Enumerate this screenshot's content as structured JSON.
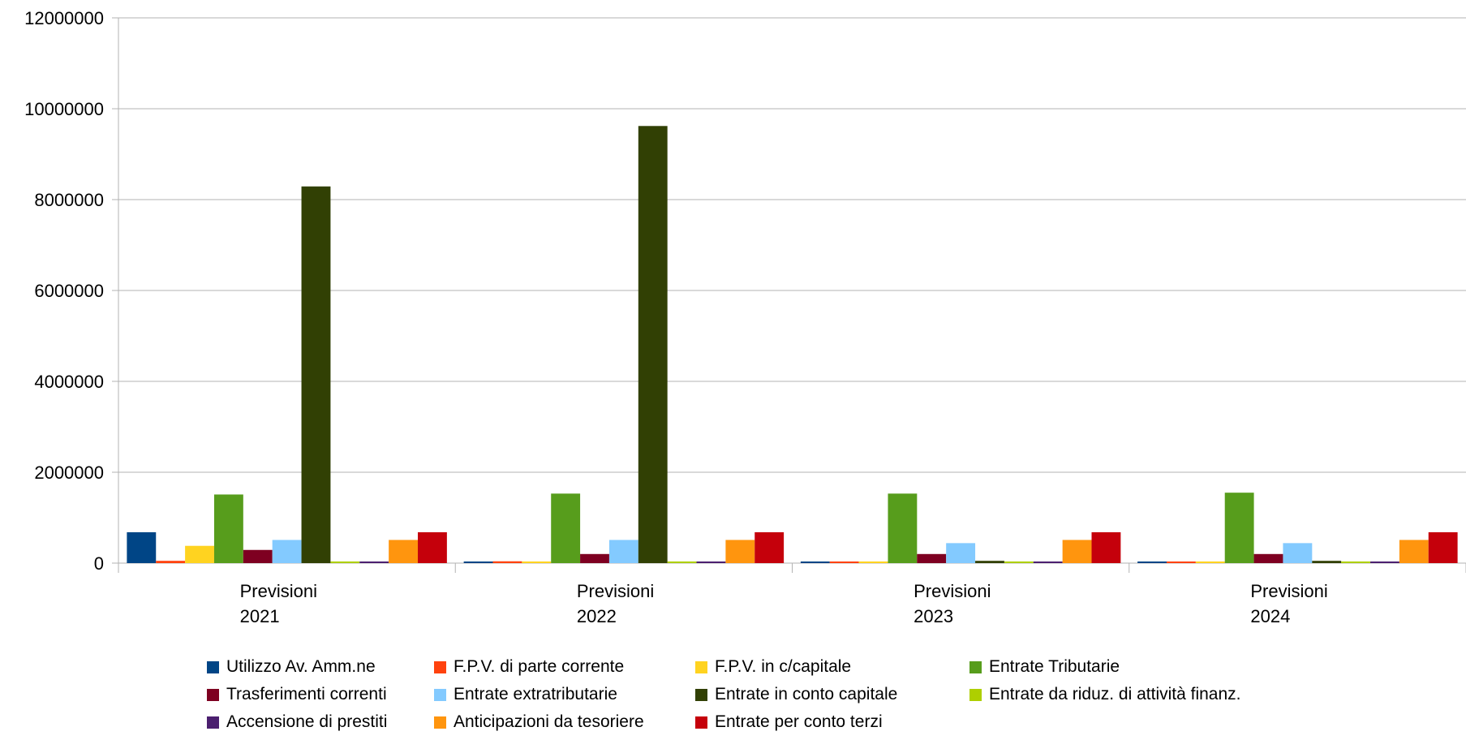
{
  "chart_data": {
    "type": "bar",
    "categories": [
      "Previsioni 2021",
      "Previsioni 2022",
      "Previsioni 2023",
      "Previsioni 2024"
    ],
    "category_lines": [
      [
        "Previsioni",
        "2021"
      ],
      [
        "Previsioni",
        "2022"
      ],
      [
        "Previsioni",
        "2023"
      ],
      [
        "Previsioni",
        "2024"
      ]
    ],
    "ylim": [
      0,
      12000000
    ],
    "yticks": [
      0,
      2000000,
      4000000,
      6000000,
      8000000,
      10000000,
      12000000
    ],
    "ytick_labels": [
      "0",
      "2000000",
      "4000000",
      "6000000",
      "8000000",
      "10000000",
      "12000000"
    ],
    "grid": true,
    "legend_position": "bottom",
    "series": [
      {
        "name": "Utilizzo Av. Amm.ne",
        "color": "#004586",
        "values": [
          680000,
          0,
          0,
          0
        ]
      },
      {
        "name": "F.P.V. di parte corrente",
        "color": "#ff420e",
        "values": [
          50000,
          40000,
          0,
          0
        ]
      },
      {
        "name": "F.P.V.  in c/capitale",
        "color": "#ffd320",
        "values": [
          380000,
          0,
          0,
          0
        ]
      },
      {
        "name": "Entrate Tributarie",
        "color": "#579d1c",
        "values": [
          1510000,
          1530000,
          1530000,
          1550000
        ]
      },
      {
        "name": "Trasferimenti correnti",
        "color": "#7e0021",
        "values": [
          290000,
          200000,
          200000,
          200000
        ]
      },
      {
        "name": "Entrate extratributarie",
        "color": "#83caff",
        "values": [
          510000,
          510000,
          440000,
          440000
        ]
      },
      {
        "name": "Entrate in conto capitale",
        "color": "#314004",
        "values": [
          8290000,
          9620000,
          50000,
          50000
        ]
      },
      {
        "name": "Entrate da riduz. di attività finanz.",
        "color": "#aecf00",
        "values": [
          0,
          0,
          0,
          0
        ]
      },
      {
        "name": "Accensione di prestiti",
        "color": "#4b1f6f",
        "values": [
          0,
          0,
          0,
          0
        ]
      },
      {
        "name": "Anticipazioni da tesoriere",
        "color": "#ff950e",
        "values": [
          510000,
          510000,
          510000,
          510000
        ]
      },
      {
        "name": "Entrate per conto terzi",
        "color": "#c5000b",
        "values": [
          680000,
          680000,
          680000,
          680000
        ]
      }
    ]
  }
}
